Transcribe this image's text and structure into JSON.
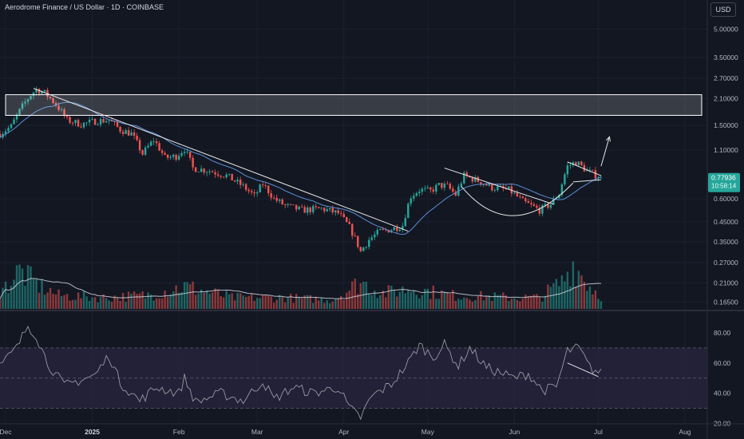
{
  "header": {
    "title": "Aerodrome Finance / US Dollar · 1D · COINBASE",
    "currency_label": "USD"
  },
  "price_tag": {
    "value": "0.77936",
    "countdown": "10:58:14"
  },
  "colors": {
    "background": "#131722",
    "up": "#26a69a",
    "down": "#ef5350",
    "ma": "#5b8fd6",
    "rsi": "#9598a1",
    "rsi_band": "#2a2640",
    "volume_ma": "#cfd3de",
    "drawing": "#e6e6e6"
  },
  "chart_data": [
    {
      "type": "candlestick",
      "title": "Aerodrome Finance / US Dollar · 1D · COINBASE",
      "y_scale": "log",
      "y_ticks": [
        "5.00000",
        "3.50000",
        "2.70000",
        "2.10000",
        "1.50000",
        "1.10000",
        "0.60000",
        "0.45000",
        "0.35000",
        "0.27000",
        "0.21000",
        "0.16500"
      ],
      "y_tick_values": [
        5.0,
        3.5,
        2.7,
        2.1,
        1.5,
        1.1,
        0.6,
        0.45,
        0.35,
        0.27,
        0.21,
        0.165
      ],
      "x_ticks": [
        "Dec",
        "2025",
        "Feb",
        "Mar",
        "Apr",
        "May",
        "Jun",
        "Jul",
        "Aug"
      ],
      "x_tick_dates": [
        "2024-12-01",
        "2025-01-01",
        "2025-02-01",
        "2025-03-01",
        "2025-04-01",
        "2025-05-01",
        "2025-06-01",
        "2025-07-01",
        "2025-08-01"
      ],
      "x_range": [
        "2024-11-29",
        "2025-08-09"
      ],
      "last_date": "2025-07-02",
      "ylim": [
        0.15,
        6.0
      ],
      "last_price": 0.77936,
      "price_anchors": [
        [
          "2024-11-29",
          1.35
        ],
        [
          "2024-12-03",
          1.48
        ],
        [
          "2024-12-07",
          1.9
        ],
        [
          "2024-12-10",
          2.2
        ],
        [
          "2024-12-12",
          2.35
        ],
        [
          "2024-12-15",
          2.25
        ],
        [
          "2024-12-19",
          1.95
        ],
        [
          "2024-12-23",
          1.6
        ],
        [
          "2024-12-28",
          1.52
        ],
        [
          "2025-01-02",
          1.58
        ],
        [
          "2025-01-07",
          1.6
        ],
        [
          "2025-01-11",
          1.42
        ],
        [
          "2025-01-15",
          1.35
        ],
        [
          "2025-01-19",
          1.05
        ],
        [
          "2025-01-23",
          1.25
        ],
        [
          "2025-01-27",
          1.0
        ],
        [
          "2025-01-31",
          1.02
        ],
        [
          "2025-02-03",
          1.12
        ],
        [
          "2025-02-06",
          0.88
        ],
        [
          "2025-02-12",
          0.85
        ],
        [
          "2025-02-18",
          0.8
        ],
        [
          "2025-02-24",
          0.7
        ],
        [
          "2025-02-28",
          0.62
        ],
        [
          "2025-03-03",
          0.72
        ],
        [
          "2025-03-07",
          0.6
        ],
        [
          "2025-03-11",
          0.55
        ],
        [
          "2025-03-17",
          0.52
        ],
        [
          "2025-03-24",
          0.53
        ],
        [
          "2025-03-30",
          0.5
        ],
        [
          "2025-04-03",
          0.42
        ],
        [
          "2025-04-07",
          0.31
        ],
        [
          "2025-04-10",
          0.36
        ],
        [
          "2025-04-14",
          0.4
        ],
        [
          "2025-04-18",
          0.41
        ],
        [
          "2025-04-22",
          0.43
        ],
        [
          "2025-04-25",
          0.62
        ],
        [
          "2025-04-28",
          0.67
        ],
        [
          "2025-05-02",
          0.66
        ],
        [
          "2025-05-05",
          0.71
        ],
        [
          "2025-05-08",
          0.7
        ],
        [
          "2025-05-11",
          0.63
        ],
        [
          "2025-05-14",
          0.8
        ],
        [
          "2025-05-18",
          0.76
        ],
        [
          "2025-05-24",
          0.69
        ],
        [
          "2025-05-30",
          0.67
        ],
        [
          "2025-06-04",
          0.58
        ],
        [
          "2025-06-10",
          0.52
        ],
        [
          "2025-06-14",
          0.56
        ],
        [
          "2025-06-17",
          0.64
        ],
        [
          "2025-06-20",
          0.9
        ],
        [
          "2025-06-23",
          0.95
        ],
        [
          "2025-06-27",
          0.85
        ],
        [
          "2025-07-02",
          0.77936
        ]
      ],
      "volume_anchors": [
        [
          "2024-11-29",
          0.35
        ],
        [
          "2024-12-06",
          0.85
        ],
        [
          "2024-12-12",
          0.55
        ],
        [
          "2024-12-20",
          0.3
        ],
        [
          "2025-01-05",
          0.25
        ],
        [
          "2025-01-20",
          0.3
        ],
        [
          "2025-02-03",
          0.5
        ],
        [
          "2025-02-20",
          0.25
        ],
        [
          "2025-03-10",
          0.25
        ],
        [
          "2025-03-28",
          0.2
        ],
        [
          "2025-04-07",
          0.6
        ],
        [
          "2025-04-15",
          0.35
        ],
        [
          "2025-04-25",
          0.45
        ],
        [
          "2025-05-10",
          0.3
        ],
        [
          "2025-06-01",
          0.25
        ],
        [
          "2025-06-10",
          0.25
        ],
        [
          "2025-06-18",
          0.6
        ],
        [
          "2025-06-22",
          1.0
        ],
        [
          "2025-06-28",
          0.5
        ],
        [
          "2025-07-02",
          0.3
        ]
      ]
    },
    {
      "type": "line",
      "title": "",
      "y_ticks": [
        "80.00",
        "60.00",
        "40.00",
        "20.00"
      ],
      "y_tick_values": [
        80,
        60,
        40,
        20
      ],
      "ylim": [
        15,
        90
      ],
      "band": [
        30,
        70
      ],
      "midline": 50,
      "rsi_anchors": [
        [
          "2024-11-29",
          58
        ],
        [
          "2024-12-05",
          70
        ],
        [
          "2024-12-09",
          85
        ],
        [
          "2024-12-12",
          78
        ],
        [
          "2024-12-16",
          60
        ],
        [
          "2024-12-22",
          45
        ],
        [
          "2025-01-02",
          52
        ],
        [
          "2025-01-07",
          65
        ],
        [
          "2025-01-11",
          47
        ],
        [
          "2025-01-18",
          35
        ],
        [
          "2025-01-24",
          44
        ],
        [
          "2025-02-01",
          40
        ],
        [
          "2025-02-03",
          50
        ],
        [
          "2025-02-07",
          34
        ],
        [
          "2025-02-16",
          40
        ],
        [
          "2025-02-24",
          35
        ],
        [
          "2025-03-03",
          48
        ],
        [
          "2025-03-07",
          36
        ],
        [
          "2025-03-14",
          44
        ],
        [
          "2025-03-21",
          40
        ],
        [
          "2025-03-30",
          44
        ],
        [
          "2025-04-03",
          30
        ],
        [
          "2025-04-07",
          24
        ],
        [
          "2025-04-11",
          38
        ],
        [
          "2025-04-18",
          46
        ],
        [
          "2025-04-24",
          60
        ],
        [
          "2025-04-28",
          72
        ],
        [
          "2025-05-03",
          64
        ],
        [
          "2025-05-07",
          72
        ],
        [
          "2025-05-12",
          58
        ],
        [
          "2025-05-16",
          70
        ],
        [
          "2025-05-22",
          57
        ],
        [
          "2025-06-01",
          50
        ],
        [
          "2025-06-06",
          53
        ],
        [
          "2025-06-11",
          42
        ],
        [
          "2025-06-16",
          44
        ],
        [
          "2025-06-20",
          68
        ],
        [
          "2025-06-24",
          70
        ],
        [
          "2025-06-28",
          57
        ],
        [
          "2025-07-02",
          53
        ]
      ]
    }
  ]
}
